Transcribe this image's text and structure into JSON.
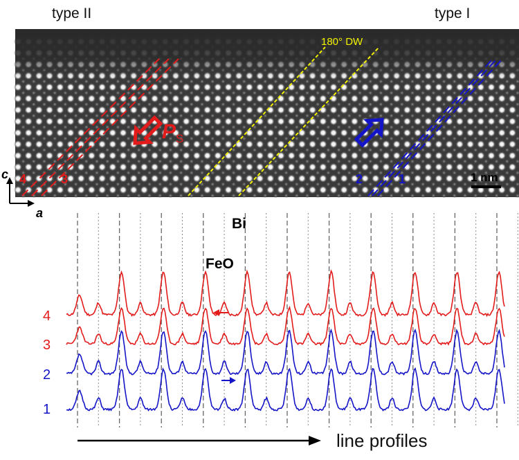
{
  "header": {
    "left_label": "type II",
    "right_label": "type I"
  },
  "image": {
    "domain_wall_label": "180° DW",
    "scalebar_label": "1 nm",
    "polarization_symbol": "P",
    "polarization_subscript": "S",
    "left_line_labels": [
      "4",
      "3"
    ],
    "right_line_labels": [
      "2",
      "1"
    ],
    "axis_c": "c",
    "axis_a": "a"
  },
  "profiles": {
    "peak_label_bi": "Bi",
    "peak_label_feo": "FeO",
    "row_labels": [
      "4",
      "3",
      "2",
      "1"
    ],
    "footer_label": "line profiles"
  },
  "colors": {
    "red": "#e31b1b",
    "blue": "#1414c8",
    "yellow": "#f2f200",
    "grid": "#777777"
  }
}
